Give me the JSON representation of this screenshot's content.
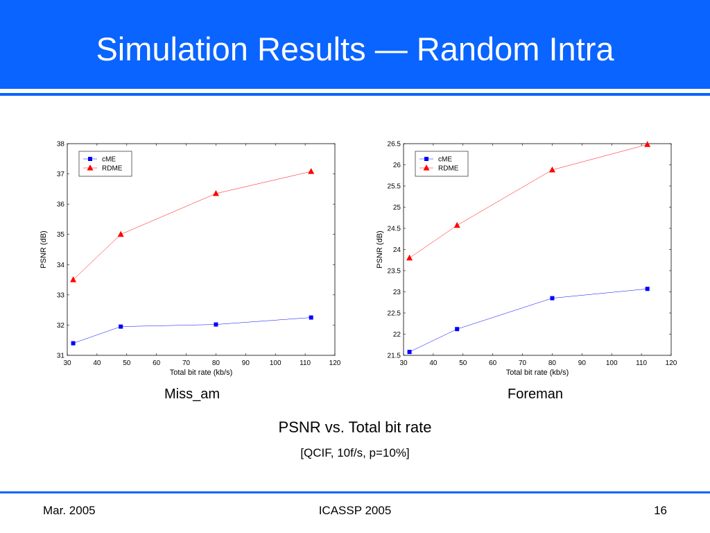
{
  "slide": {
    "title": "Simulation Results — Random Intra",
    "caption_main": "PSNR vs. Total bit rate",
    "caption_sub": "[QCIF, 10f/s, p=10%]",
    "footer_left": "Mar. 2005",
    "footer_center": "ICASSP 2005",
    "footer_right": "16"
  },
  "colors": {
    "accent": "#0a64ff",
    "series_cme": "#0000ff",
    "series_rdme": "#ff0000"
  },
  "chart_data": [
    {
      "type": "line",
      "name_label": "Miss_am",
      "xlabel": "Total bit rate (kb/s)",
      "ylabel": "PSNR (dB)",
      "xlim": [
        30,
        120
      ],
      "ylim": [
        31,
        38
      ],
      "xticks": [
        30,
        40,
        50,
        60,
        70,
        80,
        90,
        100,
        110,
        120
      ],
      "yticks": [
        31,
        32,
        33,
        34,
        35,
        36,
        37,
        38
      ],
      "legend": "top-left",
      "series": [
        {
          "name": "cME",
          "marker": "square",
          "color": "#0000ff",
          "x": [
            32,
            48,
            80,
            112
          ],
          "y": [
            31.4,
            31.95,
            32.02,
            32.25
          ]
        },
        {
          "name": "RDME",
          "marker": "triangle",
          "color": "#ff0000",
          "x": [
            32,
            48,
            80,
            112
          ],
          "y": [
            33.5,
            35.0,
            36.35,
            37.08
          ]
        }
      ]
    },
    {
      "type": "line",
      "name_label": "Foreman",
      "xlabel": "Total bit rate (kb/s)",
      "ylabel": "PSNR (dB)",
      "xlim": [
        30,
        120
      ],
      "ylim": [
        21.5,
        26.5
      ],
      "xticks": [
        30,
        40,
        50,
        60,
        70,
        80,
        90,
        100,
        110,
        120
      ],
      "yticks": [
        21.5,
        22,
        22.5,
        23,
        23.5,
        24,
        24.5,
        25,
        25.5,
        26,
        26.5
      ],
      "legend": "top-left",
      "series": [
        {
          "name": "cME",
          "marker": "square",
          "color": "#0000ff",
          "x": [
            32,
            48,
            80,
            112
          ],
          "y": [
            21.58,
            22.12,
            22.85,
            23.07
          ]
        },
        {
          "name": "RDME",
          "marker": "triangle",
          "color": "#ff0000",
          "x": [
            32,
            48,
            80,
            112
          ],
          "y": [
            23.8,
            24.57,
            25.88,
            26.48
          ]
        }
      ]
    }
  ]
}
